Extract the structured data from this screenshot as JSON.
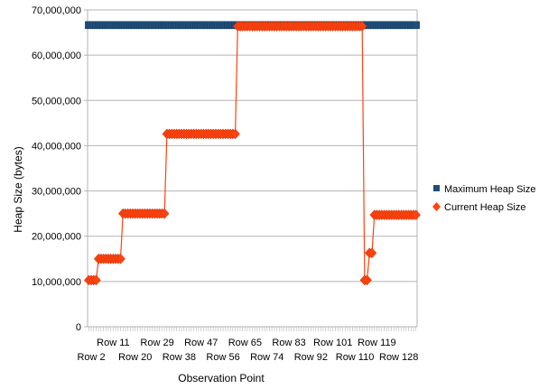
{
  "chart_data": {
    "type": "line",
    "xlabel": "Observation Point",
    "ylabel": "Heap Size (bytes)",
    "ylim": [
      0,
      70000000
    ],
    "y_ticks": [
      0,
      10000000,
      20000000,
      30000000,
      40000000,
      50000000,
      60000000,
      70000000
    ],
    "y_tick_labels": [
      "0",
      "10,000,000",
      "20,000,000",
      "30,000,000",
      "40,000,000",
      "50,000,000",
      "60,000,000",
      "70,000,000"
    ],
    "grid": "horizontal",
    "legend_position": "right",
    "row_count": 135,
    "x_tick_labels_lower": [
      "Row 2",
      "Row 20",
      "Row 38",
      "Row 56",
      "Row 74",
      "Row 92",
      "Row 110",
      "Row 128"
    ],
    "x_tick_labels_upper": [
      "Row 11",
      "Row 29",
      "Row 47",
      "Row 65",
      "Row 83",
      "Row 101",
      "Row 119"
    ],
    "series": [
      {
        "name": "Maximum Heap Size",
        "color": "#1f4e79",
        "marker": "square",
        "segments": [
          {
            "from_row": 1,
            "to_row": 135,
            "value": 66650000
          }
        ]
      },
      {
        "name": "Current Heap Size",
        "color": "#ff420e",
        "marker": "diamond",
        "segments": [
          {
            "from_row": 1,
            "to_row": 4,
            "value": 10300000
          },
          {
            "from_row": 5,
            "to_row": 14,
            "value": 15000000
          },
          {
            "from_row": 15,
            "to_row": 32,
            "value": 25000000
          },
          {
            "from_row": 33,
            "to_row": 61,
            "value": 42600000
          },
          {
            "from_row": 62,
            "to_row": 113,
            "value": 66400000
          },
          {
            "from_row": 114,
            "to_row": 115,
            "value": 10300000
          },
          {
            "from_row": 116,
            "to_row": 117,
            "value": 16300000
          },
          {
            "from_row": 118,
            "to_row": 135,
            "value": 24700000
          }
        ]
      }
    ]
  }
}
